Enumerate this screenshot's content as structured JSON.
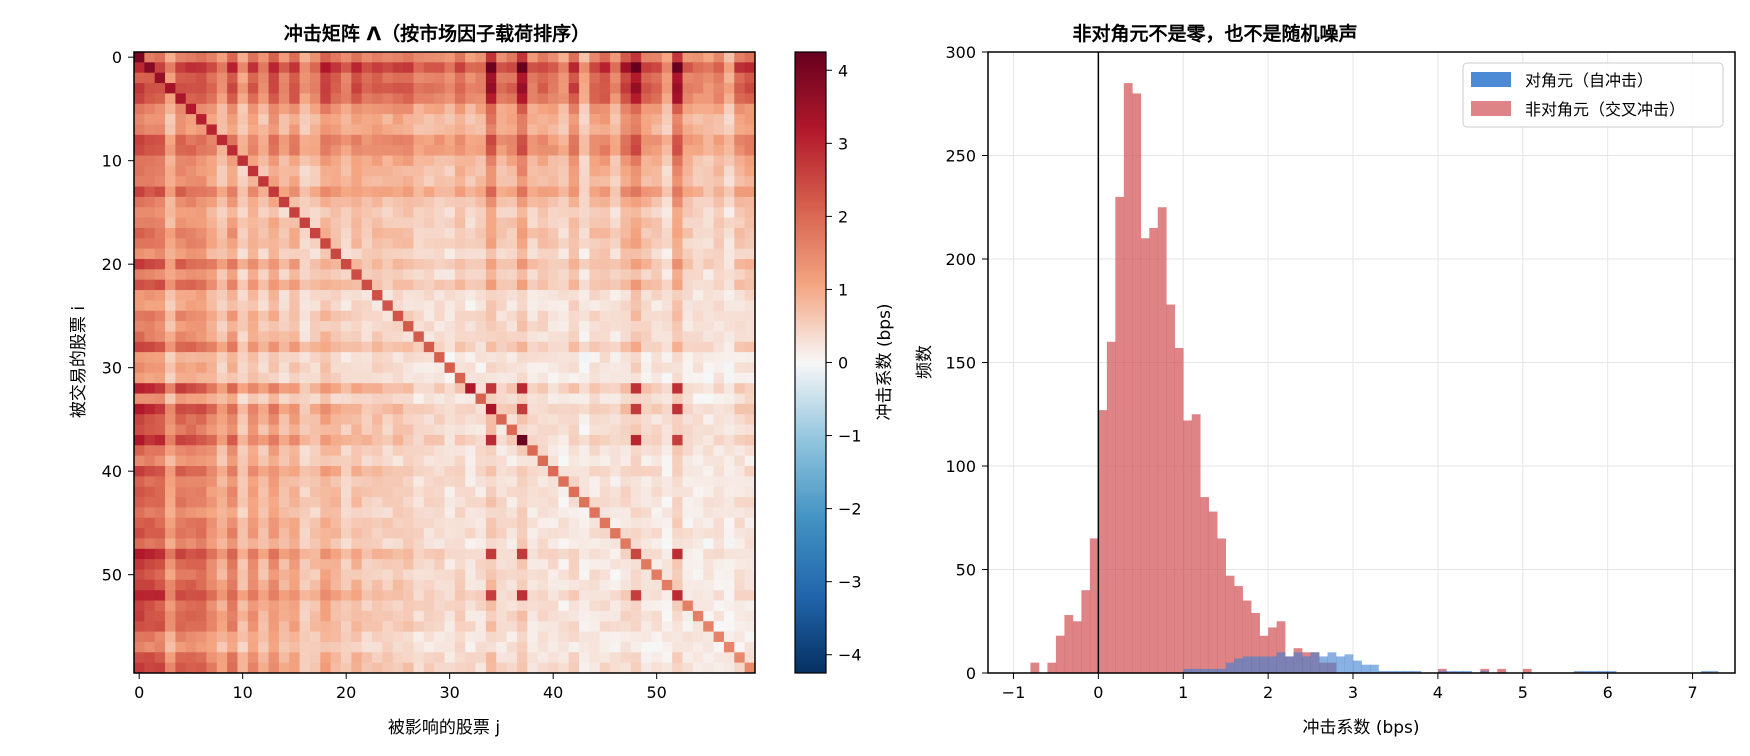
{
  "colors": {
    "heat_neg": "#053061",
    "heat_zero": "#f7f7f7",
    "heat_pos": "#67001f",
    "diag": "#3a7dd0",
    "offdiag": "#d35458",
    "grid": "#e6e6e6"
  },
  "chart_data": [
    {
      "type": "heatmap",
      "title": "冲击矩阵 Λ（按市场因子载荷排序）",
      "xlabel": "被影响的股票 j",
      "ylabel": "被交易的股票 i",
      "n": 60,
      "xticks": [
        0,
        10,
        20,
        30,
        40,
        50
      ],
      "yticks": [
        0,
        10,
        20,
        30,
        40,
        50
      ],
      "colorbar": {
        "label": "冲击系数 (bps)",
        "range": [
          -4.25,
          4.25
        ],
        "ticks": [
          4,
          3,
          2,
          1,
          0,
          -1,
          -2,
          -3,
          -4
        ],
        "tick_labels": [
          "4",
          "3",
          "2",
          "1",
          "0",
          "−1",
          "−2",
          "−3",
          "−4"
        ]
      },
      "diagonal_values": [
        4.0,
        3.8,
        3.6,
        3.4,
        3.3,
        3.2,
        3.1,
        3.0,
        2.95,
        2.9,
        2.85,
        2.8,
        2.75,
        2.7,
        2.65,
        2.6,
        2.6,
        2.55,
        2.5,
        2.5,
        2.45,
        2.4,
        2.4,
        2.35,
        2.3,
        2.3,
        2.25,
        2.2,
        2.2,
        2.15,
        2.15,
        2.1,
        3.2,
        2.1,
        3.3,
        2.05,
        2.0,
        4.2,
        2.0,
        1.95,
        1.95,
        1.9,
        1.9,
        1.85,
        1.85,
        1.8,
        1.8,
        1.75,
        2.5,
        1.75,
        1.7,
        1.7,
        2.9,
        1.65,
        1.65,
        1.6,
        1.6,
        1.55,
        1.5,
        1.5
      ],
      "strong_columns": [
        34,
        37,
        48,
        52
      ],
      "strong_rows": [
        32,
        34,
        37,
        48,
        52
      ]
    },
    {
      "type": "histogram",
      "title": "非对角元不是零，也不是随机噪声",
      "xlabel": "冲击系数 (bps)",
      "ylabel": "频数",
      "xlim": [
        -1.3,
        7.5
      ],
      "ylim": [
        0,
        300
      ],
      "xticks": [
        -1,
        0,
        1,
        2,
        3,
        4,
        5,
        6,
        7
      ],
      "xtick_labels": [
        "−1",
        "0",
        "1",
        "2",
        "3",
        "4",
        "5",
        "6",
        "7"
      ],
      "yticks": [
        0,
        50,
        100,
        150,
        200,
        250,
        300
      ],
      "vline_x": 0,
      "grid": true,
      "legend_position": "top-right",
      "bin_width": 0.1,
      "series": [
        {
          "name": "非对角元（交叉冲击）",
          "bin_start": -1.0,
          "counts": [
            0,
            0,
            5,
            0,
            5,
            18,
            28,
            25,
            40,
            65,
            127,
            160,
            230,
            285,
            280,
            210,
            215,
            225,
            178,
            157,
            122,
            125,
            85,
            78,
            65,
            47,
            42,
            35,
            29,
            18,
            22,
            25,
            8,
            12,
            10,
            10,
            5,
            5,
            0,
            0,
            0,
            0,
            0,
            0,
            0,
            0,
            0,
            0,
            0,
            0,
            2,
            0,
            0,
            0,
            0,
            2,
            0,
            2,
            0,
            0,
            2
          ]
        },
        {
          "name": "对角元（自冲击）",
          "bin_start": 1.0,
          "counts": [
            2,
            2,
            2,
            2,
            2,
            5,
            7,
            8,
            8,
            8,
            8,
            10,
            8,
            10,
            8,
            10,
            8,
            10,
            8,
            9,
            6,
            4,
            4,
            1,
            1,
            1,
            1,
            1,
            0,
            0,
            1,
            1,
            1,
            1,
            0,
            1,
            0,
            0,
            0,
            0,
            0,
            0,
            0,
            0,
            0,
            0,
            1,
            1,
            1,
            1,
            1,
            0,
            0,
            0,
            0,
            0,
            0,
            0,
            0,
            0,
            0,
            1,
            1
          ]
        }
      ]
    }
  ]
}
